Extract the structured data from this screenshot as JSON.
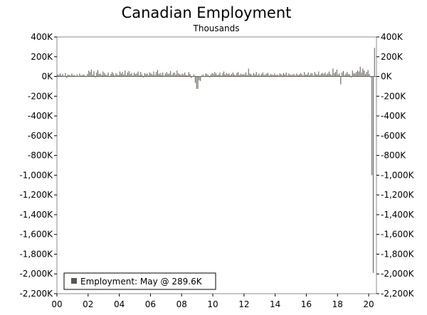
{
  "chart_data": {
    "type": "bar",
    "title": "Canadian Employment",
    "subtitle": "Thousands",
    "xlabel": "",
    "ylabel": "",
    "ylim": [
      -2200,
      400
    ],
    "y_ticks": [
      400,
      200,
      0,
      -200,
      -400,
      -600,
      -800,
      -1000,
      -1200,
      -1400,
      -1600,
      -1800,
      -2000,
      -2200
    ],
    "y_tick_labels": [
      "400K",
      "200K",
      "0K",
      "-200K",
      "-400K",
      "-600K",
      "-800K",
      "-1,000K",
      "-1,200K",
      "-1,400K",
      "-1,600K",
      "-1,800K",
      "-2,000K",
      "-2,200K"
    ],
    "x_range": [
      2000,
      2020.5
    ],
    "x_ticks": [
      2000,
      2002,
      2004,
      2006,
      2008,
      2010,
      2012,
      2014,
      2016,
      2018,
      2020
    ],
    "x_tick_labels": [
      "00",
      "02",
      "04",
      "06",
      "08",
      "10",
      "12",
      "14",
      "16",
      "18",
      "20"
    ],
    "grid": false,
    "legend": "Employment: May @ 289.6K",
    "legend_position": "bottom-left",
    "series": [
      {
        "name": "Employment",
        "color": "#5b5650",
        "x_start": "2000-01",
        "values": [
          20,
          15,
          30,
          10,
          25,
          5,
          35,
          -15,
          20,
          15,
          10,
          30,
          10,
          15,
          5,
          20,
          -5,
          30,
          10,
          15,
          20,
          10,
          5,
          25,
          60,
          45,
          70,
          20,
          55,
          -10,
          40,
          65,
          25,
          30,
          15,
          50,
          35,
          20,
          15,
          40,
          -5,
          25,
          45,
          30,
          10,
          35,
          20,
          15,
          50,
          30,
          45,
          20,
          60,
          15,
          40,
          55,
          25,
          35,
          10,
          40,
          25,
          30,
          50,
          15,
          45,
          20,
          -10,
          35,
          25,
          30,
          15,
          40,
          30,
          20,
          50,
          15,
          45,
          65,
          25,
          35,
          20,
          40,
          10,
          30,
          45,
          25,
          30,
          55,
          15,
          35,
          40,
          20,
          60,
          30,
          25,
          15,
          30,
          20,
          40,
          15,
          10,
          45,
          25,
          -15,
          5,
          20,
          -65,
          -125,
          -125,
          -40,
          -45,
          10,
          20,
          -5,
          30,
          25,
          15,
          -10,
          20,
          35,
          25,
          45,
          30,
          15,
          20,
          40,
          10,
          30,
          50,
          20,
          35,
          25,
          30,
          15,
          25,
          40,
          20,
          10,
          35,
          45,
          15,
          30,
          20,
          25,
          20,
          40,
          15,
          80,
          30,
          25,
          10,
          35,
          20,
          45,
          15,
          30,
          10,
          25,
          40,
          15,
          20,
          30,
          35,
          10,
          25,
          20,
          15,
          30,
          15,
          20,
          10,
          30,
          25,
          15,
          35,
          20,
          40,
          10,
          30,
          20,
          15,
          20,
          25,
          10,
          30,
          15,
          20,
          35,
          25,
          10,
          45,
          20,
          20,
          40,
          15,
          35,
          30,
          10,
          45,
          25,
          20,
          50,
          15,
          30,
          35,
          25,
          40,
          20,
          30,
          50,
          25,
          15,
          80,
          35,
          45,
          70,
          20,
          30,
          -80,
          40,
          55,
          15,
          30,
          45,
          25,
          20,
          -10,
          60,
          35,
          30,
          45,
          60,
          50,
          100,
          40,
          80,
          60,
          25,
          45,
          65,
          25,
          -10,
          -1000,
          -1990,
          289.6
        ]
      }
    ]
  }
}
